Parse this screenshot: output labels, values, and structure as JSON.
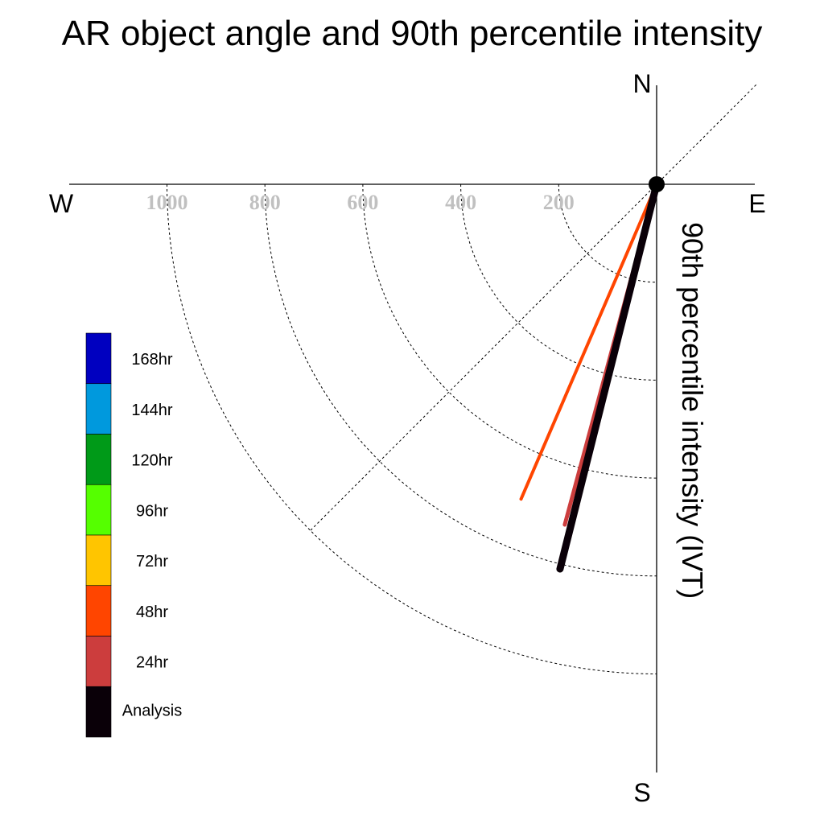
{
  "title": "AR object angle and 90th percentile intensity",
  "chart_data": {
    "type": "polar-vector",
    "title": "AR object angle and 90th percentile intensity",
    "ylabel": "90th percentile intensity (IVT)",
    "compass": {
      "north": "N",
      "south": "S",
      "east": "E",
      "west": "W"
    },
    "radial_ticks": [
      {
        "value": 200,
        "label": "200"
      },
      {
        "value": 400,
        "label": "400"
      },
      {
        "value": 600,
        "label": "600"
      },
      {
        "value": 800,
        "label": "800"
      },
      {
        "value": 1000,
        "label": "1000"
      }
    ],
    "rmax": 1200,
    "grid": true,
    "legend_placement": "left",
    "legend": [
      {
        "label": "168hr",
        "color": "#0000c0"
      },
      {
        "label": "144hr",
        "color": "#0099dd"
      },
      {
        "label": "120hr",
        "color": "#009a18"
      },
      {
        "label": "96hr",
        "color": "#55ff00"
      },
      {
        "label": "72hr",
        "color": "#ffc500"
      },
      {
        "label": "48hr",
        "color": "#ff4500"
      },
      {
        "label": "24hr",
        "color": "#cc3d3d"
      },
      {
        "label": "Analysis",
        "color": "#0a0008"
      }
    ],
    "series": [
      {
        "name": "48hr",
        "color": "#ff4500",
        "intensity": 700,
        "angle_from_south_deg": 23.3
      },
      {
        "name": "24hr",
        "color": "#cc3d3d",
        "intensity": 720,
        "angle_from_south_deg": 15.1
      },
      {
        "name": "Analysis",
        "color": "#0a0008",
        "intensity": 810,
        "angle_from_south_deg": 14.1
      }
    ]
  }
}
